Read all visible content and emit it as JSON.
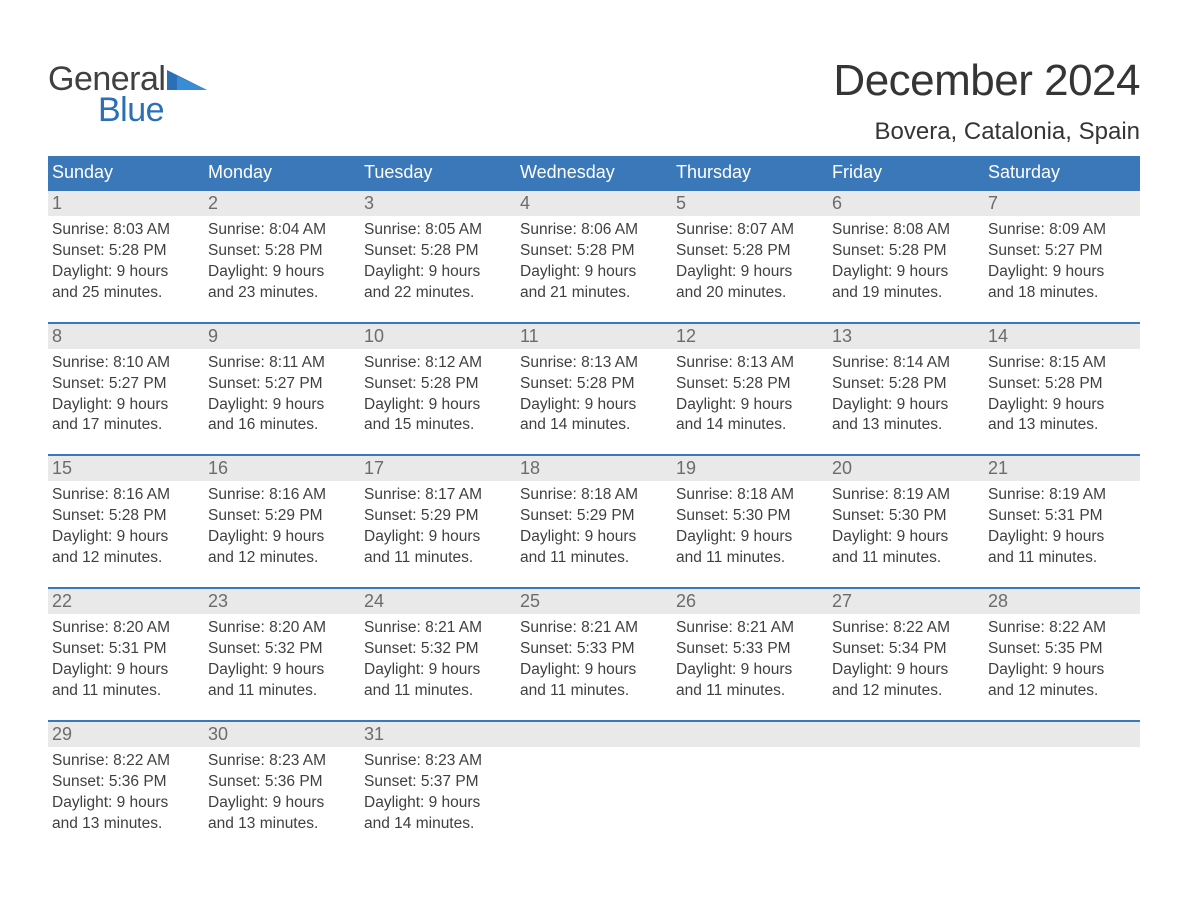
{
  "logo": {
    "word1": "General",
    "word2": "Blue",
    "word1_color": "#404040",
    "word2_color": "#2b6fb6"
  },
  "title": "December 2024",
  "location": "Bovera, Catalonia, Spain",
  "colors": {
    "header_bg": "#3a78b9",
    "header_text": "#ffffff",
    "daynum_bg": "#e9e9e9",
    "daynum_text": "#6c6c6c",
    "body_text": "#404040",
    "week_border": "#3a78b9",
    "page_bg": "#ffffff"
  },
  "typography": {
    "title_fontsize": 44,
    "location_fontsize": 24,
    "header_fontsize": 18,
    "daynum_fontsize": 18,
    "body_fontsize": 15.5,
    "font_family": "Arial"
  },
  "layout": {
    "columns": 7,
    "rows": 5,
    "start_weekday": "Sunday"
  },
  "weekdays": [
    "Sunday",
    "Monday",
    "Tuesday",
    "Wednesday",
    "Thursday",
    "Friday",
    "Saturday"
  ],
  "days": [
    {
      "n": "1",
      "sunrise": "Sunrise: 8:03 AM",
      "sunset": "Sunset: 5:28 PM",
      "d1": "Daylight: 9 hours",
      "d2": "and 25 minutes."
    },
    {
      "n": "2",
      "sunrise": "Sunrise: 8:04 AM",
      "sunset": "Sunset: 5:28 PM",
      "d1": "Daylight: 9 hours",
      "d2": "and 23 minutes."
    },
    {
      "n": "3",
      "sunrise": "Sunrise: 8:05 AM",
      "sunset": "Sunset: 5:28 PM",
      "d1": "Daylight: 9 hours",
      "d2": "and 22 minutes."
    },
    {
      "n": "4",
      "sunrise": "Sunrise: 8:06 AM",
      "sunset": "Sunset: 5:28 PM",
      "d1": "Daylight: 9 hours",
      "d2": "and 21 minutes."
    },
    {
      "n": "5",
      "sunrise": "Sunrise: 8:07 AM",
      "sunset": "Sunset: 5:28 PM",
      "d1": "Daylight: 9 hours",
      "d2": "and 20 minutes."
    },
    {
      "n": "6",
      "sunrise": "Sunrise: 8:08 AM",
      "sunset": "Sunset: 5:28 PM",
      "d1": "Daylight: 9 hours",
      "d2": "and 19 minutes."
    },
    {
      "n": "7",
      "sunrise": "Sunrise: 8:09 AM",
      "sunset": "Sunset: 5:27 PM",
      "d1": "Daylight: 9 hours",
      "d2": "and 18 minutes."
    },
    {
      "n": "8",
      "sunrise": "Sunrise: 8:10 AM",
      "sunset": "Sunset: 5:27 PM",
      "d1": "Daylight: 9 hours",
      "d2": "and 17 minutes."
    },
    {
      "n": "9",
      "sunrise": "Sunrise: 8:11 AM",
      "sunset": "Sunset: 5:27 PM",
      "d1": "Daylight: 9 hours",
      "d2": "and 16 minutes."
    },
    {
      "n": "10",
      "sunrise": "Sunrise: 8:12 AM",
      "sunset": "Sunset: 5:28 PM",
      "d1": "Daylight: 9 hours",
      "d2": "and 15 minutes."
    },
    {
      "n": "11",
      "sunrise": "Sunrise: 8:13 AM",
      "sunset": "Sunset: 5:28 PM",
      "d1": "Daylight: 9 hours",
      "d2": "and 14 minutes."
    },
    {
      "n": "12",
      "sunrise": "Sunrise: 8:13 AM",
      "sunset": "Sunset: 5:28 PM",
      "d1": "Daylight: 9 hours",
      "d2": "and 14 minutes."
    },
    {
      "n": "13",
      "sunrise": "Sunrise: 8:14 AM",
      "sunset": "Sunset: 5:28 PM",
      "d1": "Daylight: 9 hours",
      "d2": "and 13 minutes."
    },
    {
      "n": "14",
      "sunrise": "Sunrise: 8:15 AM",
      "sunset": "Sunset: 5:28 PM",
      "d1": "Daylight: 9 hours",
      "d2": "and 13 minutes."
    },
    {
      "n": "15",
      "sunrise": "Sunrise: 8:16 AM",
      "sunset": "Sunset: 5:28 PM",
      "d1": "Daylight: 9 hours",
      "d2": "and 12 minutes."
    },
    {
      "n": "16",
      "sunrise": "Sunrise: 8:16 AM",
      "sunset": "Sunset: 5:29 PM",
      "d1": "Daylight: 9 hours",
      "d2": "and 12 minutes."
    },
    {
      "n": "17",
      "sunrise": "Sunrise: 8:17 AM",
      "sunset": "Sunset: 5:29 PM",
      "d1": "Daylight: 9 hours",
      "d2": "and 11 minutes."
    },
    {
      "n": "18",
      "sunrise": "Sunrise: 8:18 AM",
      "sunset": "Sunset: 5:29 PM",
      "d1": "Daylight: 9 hours",
      "d2": "and 11 minutes."
    },
    {
      "n": "19",
      "sunrise": "Sunrise: 8:18 AM",
      "sunset": "Sunset: 5:30 PM",
      "d1": "Daylight: 9 hours",
      "d2": "and 11 minutes."
    },
    {
      "n": "20",
      "sunrise": "Sunrise: 8:19 AM",
      "sunset": "Sunset: 5:30 PM",
      "d1": "Daylight: 9 hours",
      "d2": "and 11 minutes."
    },
    {
      "n": "21",
      "sunrise": "Sunrise: 8:19 AM",
      "sunset": "Sunset: 5:31 PM",
      "d1": "Daylight: 9 hours",
      "d2": "and 11 minutes."
    },
    {
      "n": "22",
      "sunrise": "Sunrise: 8:20 AM",
      "sunset": "Sunset: 5:31 PM",
      "d1": "Daylight: 9 hours",
      "d2": "and 11 minutes."
    },
    {
      "n": "23",
      "sunrise": "Sunrise: 8:20 AM",
      "sunset": "Sunset: 5:32 PM",
      "d1": "Daylight: 9 hours",
      "d2": "and 11 minutes."
    },
    {
      "n": "24",
      "sunrise": "Sunrise: 8:21 AM",
      "sunset": "Sunset: 5:32 PM",
      "d1": "Daylight: 9 hours",
      "d2": "and 11 minutes."
    },
    {
      "n": "25",
      "sunrise": "Sunrise: 8:21 AM",
      "sunset": "Sunset: 5:33 PM",
      "d1": "Daylight: 9 hours",
      "d2": "and 11 minutes."
    },
    {
      "n": "26",
      "sunrise": "Sunrise: 8:21 AM",
      "sunset": "Sunset: 5:33 PM",
      "d1": "Daylight: 9 hours",
      "d2": "and 11 minutes."
    },
    {
      "n": "27",
      "sunrise": "Sunrise: 8:22 AM",
      "sunset": "Sunset: 5:34 PM",
      "d1": "Daylight: 9 hours",
      "d2": "and 12 minutes."
    },
    {
      "n": "28",
      "sunrise": "Sunrise: 8:22 AM",
      "sunset": "Sunset: 5:35 PM",
      "d1": "Daylight: 9 hours",
      "d2": "and 12 minutes."
    },
    {
      "n": "29",
      "sunrise": "Sunrise: 8:22 AM",
      "sunset": "Sunset: 5:36 PM",
      "d1": "Daylight: 9 hours",
      "d2": "and 13 minutes."
    },
    {
      "n": "30",
      "sunrise": "Sunrise: 8:23 AM",
      "sunset": "Sunset: 5:36 PM",
      "d1": "Daylight: 9 hours",
      "d2": "and 13 minutes."
    },
    {
      "n": "31",
      "sunrise": "Sunrise: 8:23 AM",
      "sunset": "Sunset: 5:37 PM",
      "d1": "Daylight: 9 hours",
      "d2": "and 14 minutes."
    }
  ]
}
